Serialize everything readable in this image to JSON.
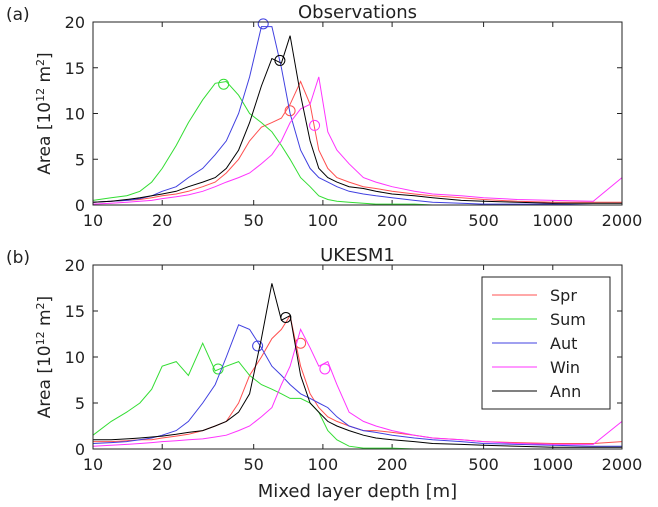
{
  "chart_data": [
    {
      "type": "line",
      "panel": "(a)",
      "title": "Observations",
      "ylabel": [
        "Area [10",
        "12",
        " m",
        "2",
        "]"
      ],
      "xscale": "log",
      "xlim": [
        10,
        2000
      ],
      "xticks": [
        10,
        20,
        50,
        100,
        200,
        500,
        1000,
        2000
      ],
      "ylim": [
        0,
        20
      ],
      "yticks": [
        0,
        5,
        10,
        15,
        20
      ],
      "x": [
        10,
        12,
        14,
        16,
        18,
        20,
        23,
        26,
        30,
        34,
        38,
        43,
        48,
        54,
        60,
        66,
        72,
        80,
        88,
        96,
        105,
        115,
        130,
        150,
        170,
        200,
        250,
        300,
        400,
        500,
        700,
        1000,
        1500,
        2000
      ],
      "series": [
        {
          "color": "#ff5050",
          "values": [
            0.3,
            0.4,
            0.5,
            0.6,
            0.8,
            1,
            1.2,
            1.5,
            2,
            2.5,
            3.5,
            5,
            7,
            8.5,
            9,
            9.5,
            11,
            13.5,
            11,
            6,
            4,
            3,
            2.5,
            2,
            1.8,
            1.5,
            1.2,
            1,
            0.8,
            0.6,
            0.4,
            0.3,
            0.3,
            0.3
          ],
          "marker": {
            "x": 72,
            "y": 10.3
          }
        },
        {
          "color": "#33dd33",
          "values": [
            0.5,
            0.8,
            1,
            1.5,
            2.5,
            4,
            6.5,
            9,
            11.5,
            13.3,
            13.5,
            12,
            10,
            9,
            8,
            6.5,
            5,
            3,
            2,
            1,
            0.6,
            0.4,
            0.3,
            0.2,
            0.1,
            0.1,
            0.1,
            0,
            0,
            0,
            0,
            0,
            0,
            0
          ],
          "marker": {
            "x": 37,
            "y": 13.2
          }
        },
        {
          "color": "#4040e0",
          "values": [
            0.3,
            0.4,
            0.5,
            0.7,
            1,
            1.5,
            2,
            3,
            4,
            5.5,
            7,
            10,
            14,
            19.5,
            19.5,
            15,
            10,
            6,
            4,
            3,
            2.5,
            2,
            1.5,
            1.2,
            1,
            0.8,
            0.5,
            0.3,
            0.2,
            0.1,
            0.1,
            0.1,
            0,
            0
          ],
          "marker": {
            "x": 55,
            "y": 19.8
          }
        },
        {
          "color": "#ff33ff",
          "values": [
            0.1,
            0.2,
            0.3,
            0.4,
            0.5,
            0.7,
            0.9,
            1.1,
            1.5,
            2,
            2.5,
            3,
            3.5,
            4.5,
            5.5,
            7,
            9,
            10.5,
            11,
            14,
            8,
            6,
            4.5,
            3,
            2.5,
            2,
            1.5,
            1.2,
            1,
            0.8,
            0.6,
            0.5,
            0.4,
            3
          ],
          "marker": {
            "x": 92,
            "y": 8.7
          }
        },
        {
          "color": "#000000",
          "values": [
            0.3,
            0.4,
            0.6,
            0.8,
            1,
            1.2,
            1.5,
            2,
            2.5,
            3,
            4,
            6,
            9,
            13,
            16,
            15.5,
            18.5,
            12,
            7,
            4,
            3,
            2.5,
            2,
            1.8,
            1.5,
            1.2,
            1,
            0.8,
            0.5,
            0.4,
            0.3,
            0.2,
            0.2,
            0.2
          ],
          "marker": {
            "x": 65,
            "y": 15.8
          }
        }
      ]
    },
    {
      "type": "line",
      "panel": "(b)",
      "title": "UKESM1",
      "ylabel": [
        "Area [10",
        "12",
        " m",
        "2",
        "]"
      ],
      "xlabel": "Mixed layer depth [m]",
      "xscale": "log",
      "xlim": [
        10,
        2000
      ],
      "xticks": [
        10,
        20,
        50,
        100,
        200,
        500,
        1000,
        2000
      ],
      "ylim": [
        0,
        20
      ],
      "yticks": [
        0,
        5,
        10,
        15,
        20
      ],
      "legend": "upper right",
      "x": [
        10,
        12,
        14,
        16,
        18,
        20,
        23,
        26,
        30,
        34,
        38,
        43,
        48,
        54,
        60,
        66,
        72,
        80,
        88,
        96,
        105,
        115,
        130,
        150,
        170,
        200,
        250,
        300,
        400,
        500,
        700,
        1000,
        1500,
        2000
      ],
      "series": [
        {
          "name": "Spr",
          "color": "#ff5050",
          "values": [
            0.8,
            0.8,
            0.9,
            1,
            1,
            1.2,
            1.4,
            1.6,
            2,
            2.5,
            3,
            5,
            8,
            10,
            12,
            13,
            14.5,
            9,
            6,
            4.5,
            3.5,
            3,
            2.5,
            2,
            2,
            1.8,
            1.5,
            1.2,
            1,
            0.8,
            0.7,
            0.6,
            0.6,
            0.8
          ],
          "marker": {
            "x": 80,
            "y": 11.5
          }
        },
        {
          "name": "Sum",
          "color": "#33dd33",
          "values": [
            1.5,
            3,
            4,
            5,
            6.5,
            9,
            9.5,
            8,
            11.5,
            8.5,
            9,
            9.5,
            8,
            7,
            6.5,
            6,
            5.5,
            5.5,
            5,
            4,
            2,
            1,
            0.3,
            0.1,
            0.1,
            0.1,
            0,
            0,
            0,
            0,
            0,
            0,
            0,
            0
          ],
          "marker": {
            "x": 35,
            "y": 8.7
          }
        },
        {
          "name": "Aut",
          "color": "#4040e0",
          "values": [
            0.6,
            0.7,
            0.8,
            1,
            1.2,
            1.5,
            2,
            3,
            5,
            7,
            10,
            13.5,
            13,
            11,
            9,
            8,
            7,
            6,
            5.5,
            5,
            4.5,
            3.5,
            2.5,
            2,
            1.8,
            1.5,
            1.2,
            1,
            0.8,
            0.6,
            0.5,
            0.4,
            0.3,
            0.3
          ],
          "marker": {
            "x": 52,
            "y": 11.2
          }
        },
        {
          "name": "Win",
          "color": "#ff33ff",
          "values": [
            0.3,
            0.4,
            0.5,
            0.6,
            0.7,
            0.8,
            0.9,
            1,
            1.1,
            1.3,
            1.5,
            2,
            2.5,
            3.5,
            4.5,
            7,
            9,
            13,
            11,
            9,
            9.5,
            7,
            4,
            3,
            2.5,
            2,
            1.5,
            1.2,
            1,
            0.8,
            0.6,
            0.5,
            0.5,
            3
          ],
          "marker": {
            "x": 102,
            "y": 8.7
          }
        },
        {
          "name": "Ann",
          "color": "#000000",
          "values": [
            1,
            1,
            1.1,
            1.2,
            1.3,
            1.4,
            1.6,
            1.8,
            2,
            2.5,
            3,
            4,
            6,
            12,
            18,
            14,
            14.5,
            8,
            5,
            4,
            3,
            2.5,
            2,
            1.5,
            1.2,
            1,
            0.8,
            0.6,
            0.5,
            0.4,
            0.3,
            0.2,
            0.2,
            0.2
          ],
          "marker": {
            "x": 69,
            "y": 14.3
          }
        }
      ]
    }
  ]
}
